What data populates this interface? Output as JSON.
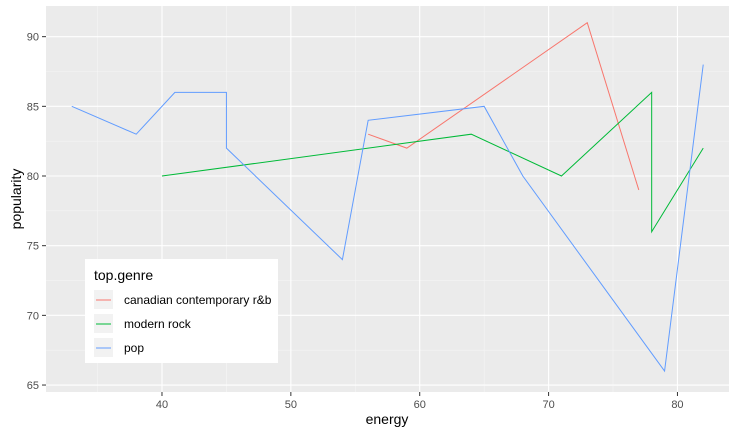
{
  "chart_data": {
    "type": "line",
    "title": "",
    "xlabel": "energy",
    "ylabel": "popularity",
    "xlim": [
      31,
      84
    ],
    "ylim": [
      64.5,
      92.2
    ],
    "x_ticks": [
      40,
      50,
      60,
      70,
      80
    ],
    "y_ticks": [
      65,
      70,
      75,
      80,
      85,
      90
    ],
    "grid": true,
    "legend": {
      "title": "top.genre",
      "placement": "bottom-left"
    },
    "series": [
      {
        "name": "canadian contemporary r&b",
        "color": "#F8766D",
        "points": [
          [
            56,
            83
          ],
          [
            59,
            82
          ],
          [
            73,
            91
          ],
          [
            77,
            79
          ]
        ]
      },
      {
        "name": "modern rock",
        "color": "#00BA38",
        "points": [
          [
            40,
            80
          ],
          [
            64,
            83
          ],
          [
            71,
            80
          ],
          [
            78,
            86
          ],
          [
            78,
            76
          ],
          [
            82,
            82
          ]
        ]
      },
      {
        "name": "pop",
        "color": "#619CFF",
        "points": [
          [
            33,
            85
          ],
          [
            38,
            83
          ],
          [
            41,
            86
          ],
          [
            45,
            86
          ],
          [
            45,
            82
          ],
          [
            54,
            74
          ],
          [
            56,
            84
          ],
          [
            65,
            85
          ],
          [
            68,
            80
          ],
          [
            79,
            66
          ],
          [
            82,
            88
          ]
        ]
      }
    ]
  }
}
